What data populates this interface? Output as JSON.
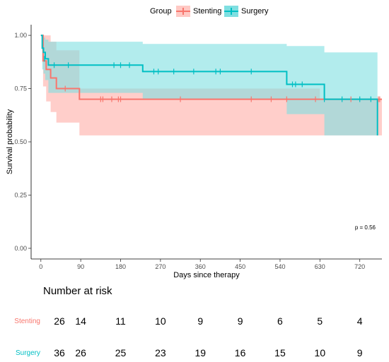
{
  "chart_data": {
    "type": "line",
    "subtype": "kaplan-meier",
    "xlabel": "Days since therapy",
    "ylabel": "Survival probability",
    "xlim": [
      -22,
      770
    ],
    "ylim": [
      -0.05,
      1.05
    ],
    "x_ticks": [
      0,
      90,
      180,
      270,
      360,
      450,
      540,
      630,
      720
    ],
    "y_ticks": [
      "0.00",
      "0.25",
      "0.50",
      "0.75",
      "1.00"
    ],
    "grid": false,
    "legend": {
      "title": "Group",
      "position": "top"
    },
    "annotation": "p = 0.56",
    "series": [
      {
        "name": "Stenting",
        "color": "#F8766D",
        "fill": "#FFC9C4",
        "x": [
          0,
          5,
          12,
          22,
          35,
          87,
          630,
          770
        ],
        "y": [
          1.0,
          0.88,
          0.84,
          0.8,
          0.75,
          0.7,
          0.7,
          0.7
        ],
        "upper": [
          1.0,
          1.0,
          1.0,
          0.97,
          0.93,
          0.75,
          0.7,
          0.7
        ],
        "lower": [
          1.0,
          0.76,
          0.69,
          0.64,
          0.59,
          0.53,
          0.53,
          0.53
        ],
        "censor_x": [
          55,
          135,
          140,
          160,
          175,
          180,
          315,
          475,
          520,
          555,
          620,
          700,
          762,
          765
        ],
        "censor_y": [
          0.75,
          0.7,
          0.7,
          0.7,
          0.7,
          0.7,
          0.7,
          0.7,
          0.7,
          0.7,
          0.7,
          0.7,
          0.7,
          0.7
        ]
      },
      {
        "name": "Surgery",
        "color": "#00BFC4",
        "fill": "#7FDFE1",
        "x": [
          0,
          3,
          6,
          10,
          17,
          28,
          230,
          555,
          640,
          760
        ],
        "y": [
          1.0,
          0.94,
          0.92,
          0.89,
          0.86,
          0.86,
          0.83,
          0.77,
          0.7,
          0.53
        ],
        "upper": [
          1.0,
          1.0,
          0.99,
          0.98,
          0.97,
          0.97,
          0.96,
          0.95,
          0.92,
          0.98
        ],
        "lower": [
          1.0,
          0.84,
          0.82,
          0.79,
          0.73,
          0.73,
          0.7,
          0.63,
          0.53,
          0.28
        ],
        "censor_x": [
          8,
          30,
          62,
          165,
          180,
          200,
          255,
          265,
          300,
          345,
          395,
          405,
          475,
          568,
          575,
          590,
          640,
          680,
          720,
          745
        ],
        "censor_y": [
          0.89,
          0.86,
          0.86,
          0.86,
          0.86,
          0.86,
          0.83,
          0.83,
          0.83,
          0.83,
          0.83,
          0.83,
          0.83,
          0.77,
          0.77,
          0.77,
          0.7,
          0.7,
          0.7,
          0.7
        ]
      }
    ],
    "risk_table": {
      "title": "Number at risk",
      "x": [
        0,
        90,
        180,
        270,
        360,
        450,
        540,
        630,
        720
      ],
      "rows": [
        {
          "name": "Stenting",
          "color": "#F8766D",
          "values": [
            "26",
            "14",
            "11",
            "10",
            "9",
            "9",
            "6",
            "5",
            "4"
          ]
        },
        {
          "name": "Surgery",
          "color": "#00BFC4",
          "values": [
            "36",
            "26",
            "25",
            "23",
            "19",
            "16",
            "15",
            "10",
            "9"
          ]
        }
      ]
    }
  }
}
